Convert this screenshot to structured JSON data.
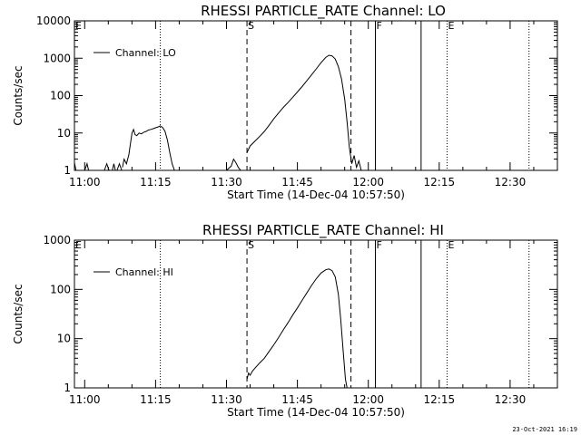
{
  "chart_data": [
    {
      "type": "line",
      "title": "RHESSI PARTICLE_RATE Channel: LO",
      "xlabel": "Start Time (14-Dec-04 10:57:50)",
      "ylabel": "Counts/sec",
      "yscale": "log",
      "xlim": [
        "10:57:50",
        "12:40:00"
      ],
      "ylim": [
        1,
        10000
      ],
      "x_ticks": [
        "11:00",
        "11:15",
        "11:30",
        "11:45",
        "12:00",
        "12:15",
        "12:30"
      ],
      "y_ticks": [
        "1",
        "10",
        "100",
        "1000",
        "10000"
      ],
      "legend": {
        "label": "Channel: LO",
        "position": "top-left"
      },
      "markers": [
        {
          "label": "E",
          "time": "10:57:50",
          "style": "dotted"
        },
        {
          "label": "",
          "time": "11:16:00",
          "style": "dotted"
        },
        {
          "label": "S",
          "time": "11:34:20",
          "style": "dashed"
        },
        {
          "label": "",
          "time": "11:56:20",
          "style": "dashed"
        },
        {
          "label": "F",
          "time": "12:01:30",
          "style": "solid"
        },
        {
          "label": "",
          "time": "12:11:10",
          "style": "solid"
        },
        {
          "label": "E",
          "time": "12:16:40",
          "style": "dotted"
        },
        {
          "label": "",
          "time": "12:34:00",
          "style": "dotted"
        }
      ],
      "series": [
        {
          "name": "Channel: LO",
          "segments": [
            [
              [
                "10:57:50",
                1.6
              ],
              [
                "10:58:10",
                1.0
              ],
              [
                "10:58:30",
                0.9
              ]
            ],
            [
              [
                "11:00:00",
                1.0
              ],
              [
                "11:00:30",
                1.5
              ],
              [
                "11:00:50",
                1.0
              ]
            ],
            [
              [
                "11:04:10",
                1.0
              ],
              [
                "11:04:40",
                1.5
              ],
              [
                "11:05:10",
                1.0
              ]
            ],
            [
              [
                "11:05:50",
                1.0
              ],
              [
                "11:06:10",
                1.5
              ],
              [
                "11:06:30",
                1.0
              ]
            ],
            [
              [
                "11:06:50",
                1.0
              ],
              [
                "11:07:20",
                1.5
              ],
              [
                "11:07:50",
                1.0
              ]
            ],
            [
              [
                "11:08:00",
                1.2
              ],
              [
                "11:08:20",
                2.0
              ],
              [
                "11:08:50",
                1.5
              ],
              [
                "11:09:20",
                2.6
              ],
              [
                "11:09:40",
                5.0
              ],
              [
                "11:10:00",
                10.0
              ],
              [
                "11:10:20",
                12.5
              ],
              [
                "11:10:40",
                9.0
              ],
              [
                "11:11:00",
                8.5
              ],
              [
                "11:11:30",
                10.0
              ],
              [
                "11:12:00",
                9.5
              ],
              [
                "11:12:30",
                10.5
              ],
              [
                "11:13:00",
                11.0
              ],
              [
                "11:13:30",
                12.0
              ],
              [
                "11:14:00",
                12.5
              ],
              [
                "11:14:30",
                13.0
              ],
              [
                "11:15:00",
                13.8
              ],
              [
                "11:15:30",
                14.5
              ],
              [
                "11:16:00",
                15.5
              ],
              [
                "11:16:30",
                14.0
              ],
              [
                "11:17:00",
                11.0
              ],
              [
                "11:17:30",
                6.5
              ],
              [
                "11:18:00",
                3.0
              ],
              [
                "11:18:30",
                1.5
              ],
              [
                "11:19:00",
                1.0
              ],
              [
                "11:19:10",
                0.9
              ]
            ],
            [
              [
                "11:30:00",
                0.9
              ],
              [
                "11:31:00",
                1.3
              ],
              [
                "11:31:30",
                2.0
              ],
              [
                "11:32:00",
                1.6
              ],
              [
                "11:32:30",
                1.2
              ],
              [
                "11:33:00",
                1.0
              ],
              [
                "11:33:20",
                0.9
              ]
            ],
            [
              [
                "11:34:20",
                3.0
              ],
              [
                "11:35:00",
                4.5
              ],
              [
                "11:36:00",
                6.0
              ],
              [
                "11:37:00",
                8.0
              ],
              [
                "11:38:00",
                11.0
              ],
              [
                "11:39:00",
                16.0
              ],
              [
                "11:40:00",
                24.0
              ],
              [
                "11:41:00",
                34.0
              ],
              [
                "11:42:00",
                48.0
              ],
              [
                "11:43:00",
                65.0
              ],
              [
                "11:44:00",
                90.0
              ],
              [
                "11:45:00",
                125.0
              ],
              [
                "11:46:00",
                175.0
              ],
              [
                "11:47:00",
                250.0
              ],
              [
                "11:48:00",
                360.0
              ],
              [
                "11:49:00",
                520.0
              ],
              [
                "11:50:00",
                760.0
              ],
              [
                "11:51:00",
                1050.0
              ],
              [
                "11:51:40",
                1200.0
              ],
              [
                "11:52:20",
                1150.0
              ],
              [
                "11:53:00",
                950.0
              ],
              [
                "11:53:40",
                600.0
              ],
              [
                "11:54:20",
                280.0
              ],
              [
                "11:55:00",
                80.0
              ],
              [
                "11:55:30",
                20.0
              ],
              [
                "11:56:00",
                4.0
              ],
              [
                "11:56:30",
                1.5
              ],
              [
                "11:57:00",
                2.5
              ],
              [
                "11:57:30",
                1.2
              ],
              [
                "11:58:00",
                1.8
              ],
              [
                "11:58:30",
                0.9
              ]
            ]
          ]
        }
      ]
    },
    {
      "type": "line",
      "title": "RHESSI PARTICLE_RATE Channel: HI",
      "xlabel": "Start Time (14-Dec-04 10:57:50)",
      "ylabel": "Counts/sec",
      "yscale": "log",
      "xlim": [
        "10:57:50",
        "12:40:00"
      ],
      "ylim": [
        1,
        1000
      ],
      "x_ticks": [
        "11:00",
        "11:15",
        "11:30",
        "11:45",
        "12:00",
        "12:15",
        "12:30"
      ],
      "y_ticks": [
        "1",
        "10",
        "100",
        "1000"
      ],
      "legend": {
        "label": "Channel: HI",
        "position": "top-left"
      },
      "markers": [
        {
          "label": "E",
          "time": "10:57:50",
          "style": "dotted"
        },
        {
          "label": "",
          "time": "11:16:00",
          "style": "dotted"
        },
        {
          "label": "S",
          "time": "11:34:20",
          "style": "dashed"
        },
        {
          "label": "",
          "time": "11:56:20",
          "style": "dashed"
        },
        {
          "label": "F",
          "time": "12:01:30",
          "style": "solid"
        },
        {
          "label": "",
          "time": "12:11:10",
          "style": "solid"
        },
        {
          "label": "E",
          "time": "12:16:40",
          "style": "dotted"
        },
        {
          "label": "",
          "time": "12:34:00",
          "style": "dotted"
        }
      ],
      "series": [
        {
          "name": "Channel: HI",
          "segments": [
            [
              [
                "11:34:20",
                1.5
              ],
              [
                "11:34:40",
                2.0
              ],
              [
                "11:35:00",
                1.8
              ],
              [
                "11:35:30",
                2.2
              ],
              [
                "11:36:00",
                2.5
              ],
              [
                "11:37:00",
                3.2
              ],
              [
                "11:38:00",
                4.0
              ],
              [
                "11:39:00",
                5.5
              ],
              [
                "11:40:00",
                7.5
              ],
              [
                "11:41:00",
                10.5
              ],
              [
                "11:42:00",
                15.0
              ],
              [
                "11:43:00",
                21.0
              ],
              [
                "11:44:00",
                30.0
              ],
              [
                "11:45:00",
                42.0
              ],
              [
                "11:46:00",
                60.0
              ],
              [
                "11:47:00",
                85.0
              ],
              [
                "11:48:00",
                120.0
              ],
              [
                "11:49:00",
                165.0
              ],
              [
                "11:50:00",
                215.0
              ],
              [
                "11:51:00",
                250.0
              ],
              [
                "11:51:40",
                260.0
              ],
              [
                "11:52:20",
                240.0
              ],
              [
                "11:53:00",
                180.0
              ],
              [
                "11:53:40",
                80.0
              ],
              [
                "11:54:10",
                25.0
              ],
              [
                "11:54:40",
                6.0
              ],
              [
                "11:55:10",
                1.5
              ],
              [
                "11:55:30",
                0.9
              ]
            ]
          ]
        }
      ]
    }
  ],
  "footer": {
    "timestamp": "23-Oct-2021 16:19"
  }
}
